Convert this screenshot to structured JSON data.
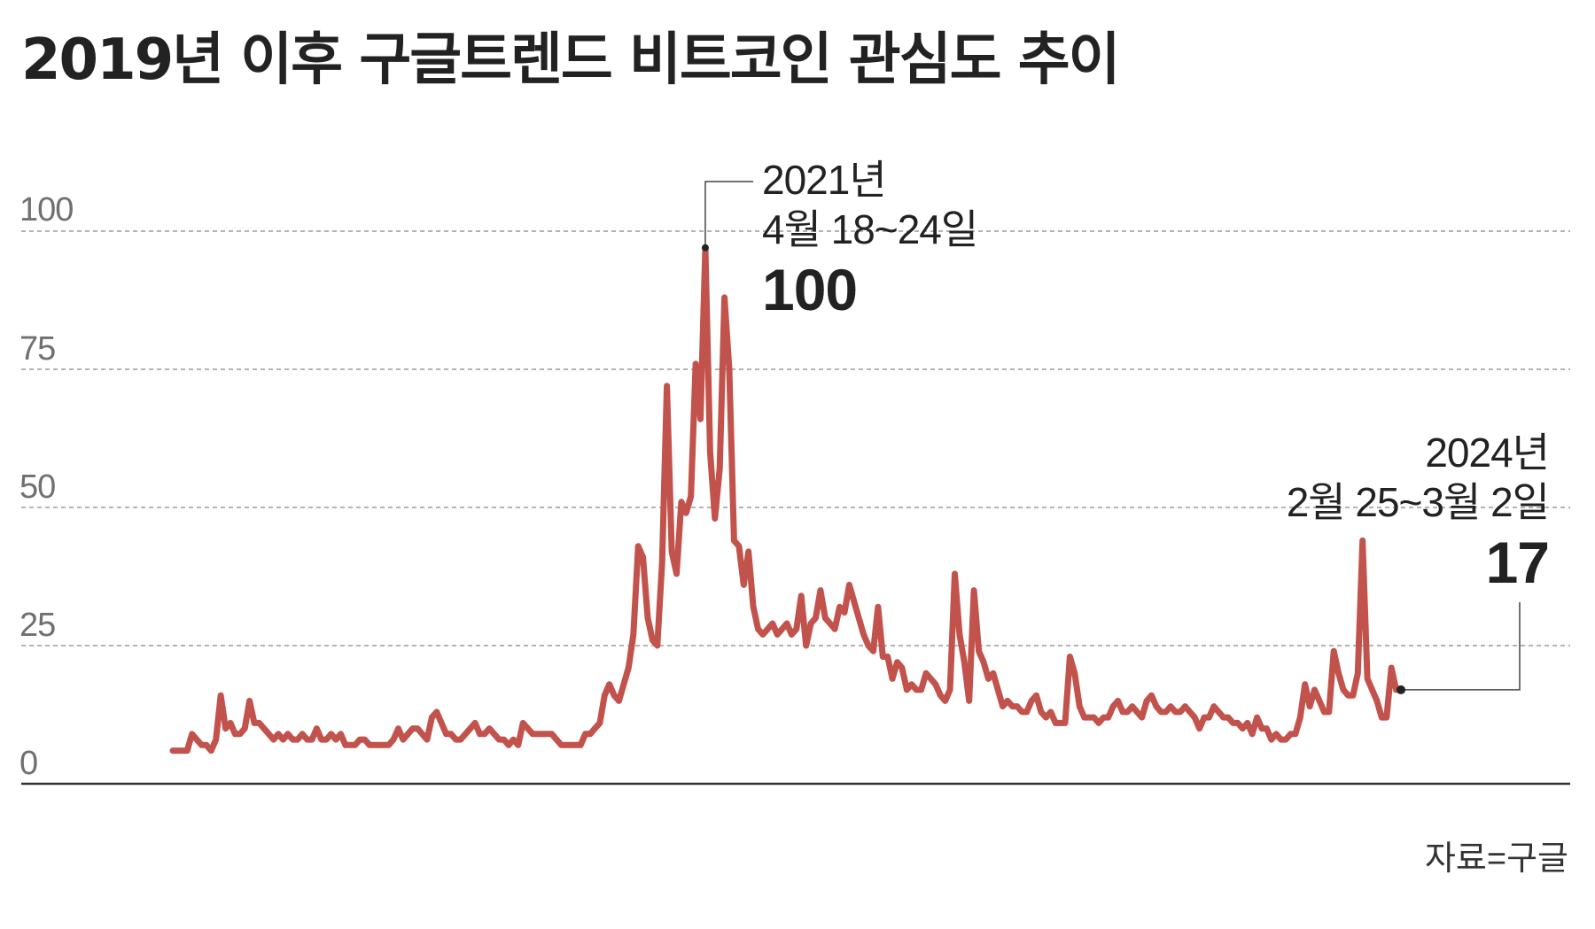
{
  "title": "2019년 이후 구글트렌드 비트코인 관심도 추이",
  "source": "자료=구글",
  "colors": {
    "line": "#C2524C",
    "grid": "#888888",
    "axis": "#333333",
    "text": "#222222",
    "tick": "#707070"
  },
  "annotations": {
    "peak": {
      "line1": "2021년",
      "line2": "4월 18~24일",
      "value": "100"
    },
    "latest": {
      "line1": "2024년",
      "line2": "2월 25~3월 2일",
      "value": "17"
    }
  },
  "chart_data": {
    "type": "line",
    "title": "2019년 이후 구글트렌드 비트코인 관심도 추이",
    "xlabel": "",
    "ylabel": "",
    "ylim": [
      0,
      100
    ],
    "yticks": [
      0,
      25,
      50,
      75,
      100
    ],
    "ytick_labels": [
      "0",
      "25",
      "50",
      "75",
      "100"
    ],
    "grid": true,
    "grid_style": "dashed horizontal",
    "x_range": [
      "2019-01",
      "2024-03-02"
    ],
    "frequency": "weekly",
    "source": "자료=구글",
    "series": [
      {
        "name": "비트코인 관심도",
        "values": [
          6,
          6,
          6,
          6,
          9,
          8,
          7,
          7,
          6,
          8,
          16,
          10,
          11,
          9,
          9,
          10,
          15,
          11,
          11,
          10,
          9,
          8,
          9,
          8,
          9,
          8,
          8,
          9,
          8,
          8,
          10,
          8,
          8,
          9,
          8,
          9,
          7,
          7,
          7,
          8,
          8,
          7,
          7,
          7,
          7,
          7,
          8,
          10,
          8,
          9,
          10,
          10,
          9,
          8,
          12,
          13,
          11,
          9,
          9,
          8,
          8,
          9,
          10,
          11,
          9,
          9,
          10,
          9,
          8,
          8,
          7,
          8,
          7,
          11,
          10,
          9,
          9,
          9,
          9,
          9,
          8,
          7,
          7,
          7,
          7,
          7,
          9,
          9,
          10,
          11,
          16,
          18,
          16,
          15,
          18,
          21,
          27,
          43,
          41,
          30,
          26,
          25,
          40,
          72,
          42,
          38,
          51,
          49,
          52,
          76,
          66,
          97,
          60,
          48,
          57,
          88,
          75,
          44,
          43,
          36,
          42,
          32,
          28,
          27,
          28,
          29,
          27,
          28,
          29,
          27,
          28,
          34,
          25,
          29,
          30,
          35,
          30,
          29,
          28,
          32,
          31,
          36,
          33,
          30,
          27,
          25,
          24,
          32,
          23,
          23,
          19,
          22,
          21,
          17,
          18,
          17,
          17,
          20,
          19,
          18,
          16,
          15,
          17,
          38,
          27,
          22,
          15,
          35,
          24,
          22,
          19,
          20,
          17,
          14,
          15,
          14,
          14,
          13,
          13,
          15,
          16,
          13,
          12,
          13,
          11,
          11,
          11,
          23,
          20,
          14,
          12,
          12,
          12,
          11,
          12,
          12,
          14,
          15,
          13,
          13,
          14,
          13,
          12,
          15,
          16,
          14,
          13,
          13,
          14,
          13,
          13,
          14,
          13,
          12,
          10,
          12,
          12,
          14,
          13,
          12,
          12,
          11,
          11,
          10,
          11,
          9,
          12,
          10,
          10,
          8,
          9,
          8,
          8,
          9,
          9,
          12,
          18,
          14,
          17,
          15,
          13,
          13,
          24,
          20,
          17,
          16,
          16,
          20,
          44,
          19,
          17,
          15,
          12,
          12,
          21,
          17,
          17
        ]
      }
    ],
    "highlights": [
      {
        "label": "2021년 4월 18~24일",
        "value": 100
      },
      {
        "label": "2024년 2월 25~3월 2일",
        "value": 17
      }
    ]
  }
}
